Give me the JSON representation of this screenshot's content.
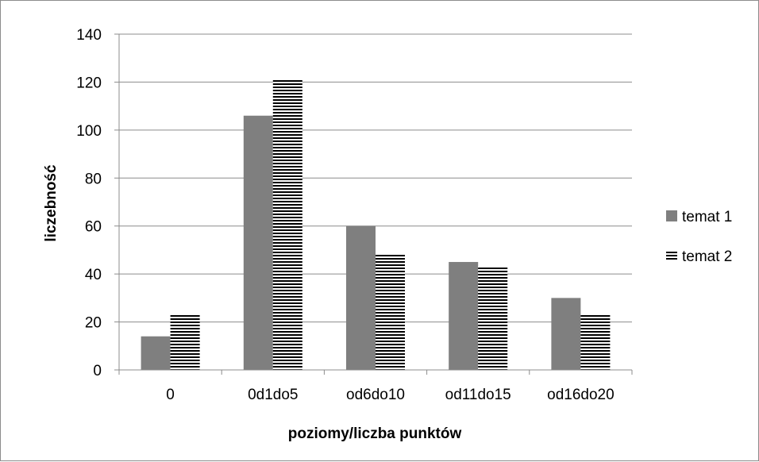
{
  "chart_data": {
    "type": "bar",
    "categories": [
      "0",
      "0d1do5",
      "od6do10",
      "od11do15",
      "od16do20"
    ],
    "series": [
      {
        "name": "temat 1",
        "values": [
          14,
          106,
          60,
          45,
          30
        ],
        "color": "#7f7f7f",
        "pattern": "solid"
      },
      {
        "name": "temat 2",
        "values": [
          23,
          121,
          48,
          43,
          23
        ],
        "color": "#000000",
        "pattern": "horizontal-stripes"
      }
    ],
    "ylim": [
      0,
      140
    ],
    "yticks": [
      "0",
      "20",
      "40",
      "60",
      "80",
      "100",
      "120",
      "140"
    ],
    "xlabel": "poziomy/liczba punktów",
    "ylabel": "liczebność",
    "grid": true,
    "legend": "right"
  }
}
